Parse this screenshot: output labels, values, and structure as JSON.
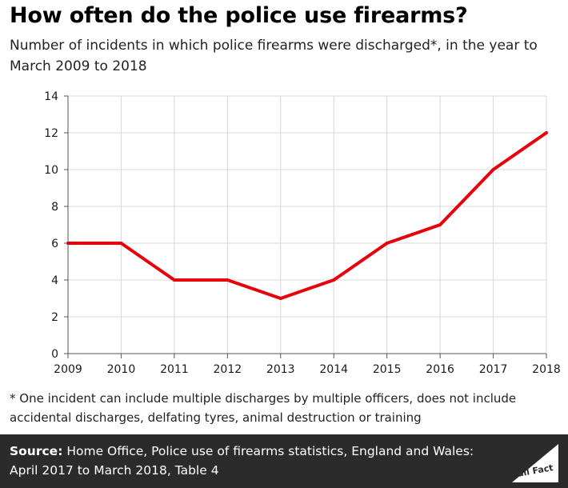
{
  "title": "How often do the police use firearms?",
  "subtitle": "Number of incidents in which police firearms were discharged*, in the year to March 2009 to 2018",
  "chart_data": {
    "type": "line",
    "title": "How often do the police use firearms?",
    "xlabel": "",
    "ylabel": "",
    "categories": [
      "2009",
      "2010",
      "2011",
      "2012",
      "2013",
      "2014",
      "2015",
      "2016",
      "2017",
      "2018"
    ],
    "series": [
      {
        "name": "Incidents with police firearms discharged",
        "values": [
          6,
          6,
          4,
          4,
          3,
          4,
          6,
          7,
          10,
          12
        ]
      }
    ],
    "ylim": [
      0,
      14
    ],
    "yticks": [
      "0",
      "2",
      "4",
      "6",
      "8",
      "10",
      "12",
      "14"
    ],
    "grid": true,
    "line_color": "#e8000b",
    "grid_color": "#d9d9d9"
  },
  "footnote": "* One incident can include multiple discharges by multiple officers, does not include accidental discharges, delfating tyres, animal destruction or training",
  "source": {
    "label": "Source:",
    "text": "Home Office, Police use of firearms statistics, England and Wales: April 2017 to March 2018, Table 4"
  },
  "logo": {
    "text": "Full Fact",
    "icon": "full-fact-logo-icon"
  }
}
